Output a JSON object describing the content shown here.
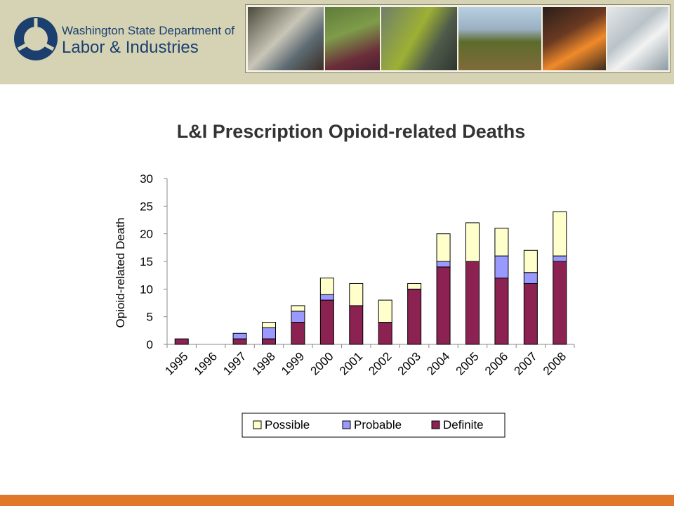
{
  "header": {
    "org_line1": "Washington State Department of",
    "org_line2": "Labor & Industries",
    "photos": [
      "worker-sanding-photo",
      "farmworker-harvest-photo",
      "construction-worker-photo",
      "field-workers-photo",
      "furnace-worker-photo",
      "lab-technician-photo"
    ]
  },
  "colors": {
    "header_bg": "#d6d3b5",
    "accent_bar": "#e0772a",
    "logo_blue": "#1b3f6e",
    "definite": "#8b2252",
    "probable": "#9999ff",
    "possible": "#ffffcc"
  },
  "chart_data": {
    "type": "bar",
    "stacked": true,
    "title": "L&I Prescription Opioid-related Deaths",
    "ylabel": "Opioid-related Death",
    "xlabel": "",
    "ylim": [
      0,
      30
    ],
    "yticks": [
      0,
      5,
      10,
      15,
      20,
      25,
      30
    ],
    "categories": [
      "1995",
      "1996",
      "1997",
      "1998",
      "1999",
      "2000",
      "2001",
      "2002",
      "2003",
      "2004",
      "2005",
      "2006",
      "2007",
      "2008"
    ],
    "series": [
      {
        "name": "Definite",
        "color": "#8b2252",
        "values": [
          1,
          0,
          1,
          1,
          4,
          8,
          7,
          4,
          10,
          14,
          15,
          12,
          11,
          15
        ]
      },
      {
        "name": "Probable",
        "color": "#9999ff",
        "values": [
          0,
          0,
          1,
          2,
          2,
          1,
          0,
          0,
          0,
          1,
          0,
          4,
          2,
          1
        ]
      },
      {
        "name": "Possible",
        "color": "#ffffcc",
        "values": [
          0,
          0,
          0,
          1,
          1,
          3,
          4,
          4,
          1,
          5,
          7,
          5,
          4,
          8
        ]
      }
    ],
    "legend": {
      "placement": "bottom",
      "order": [
        "Possible",
        "Probable",
        "Definite"
      ]
    },
    "grid": false
  }
}
